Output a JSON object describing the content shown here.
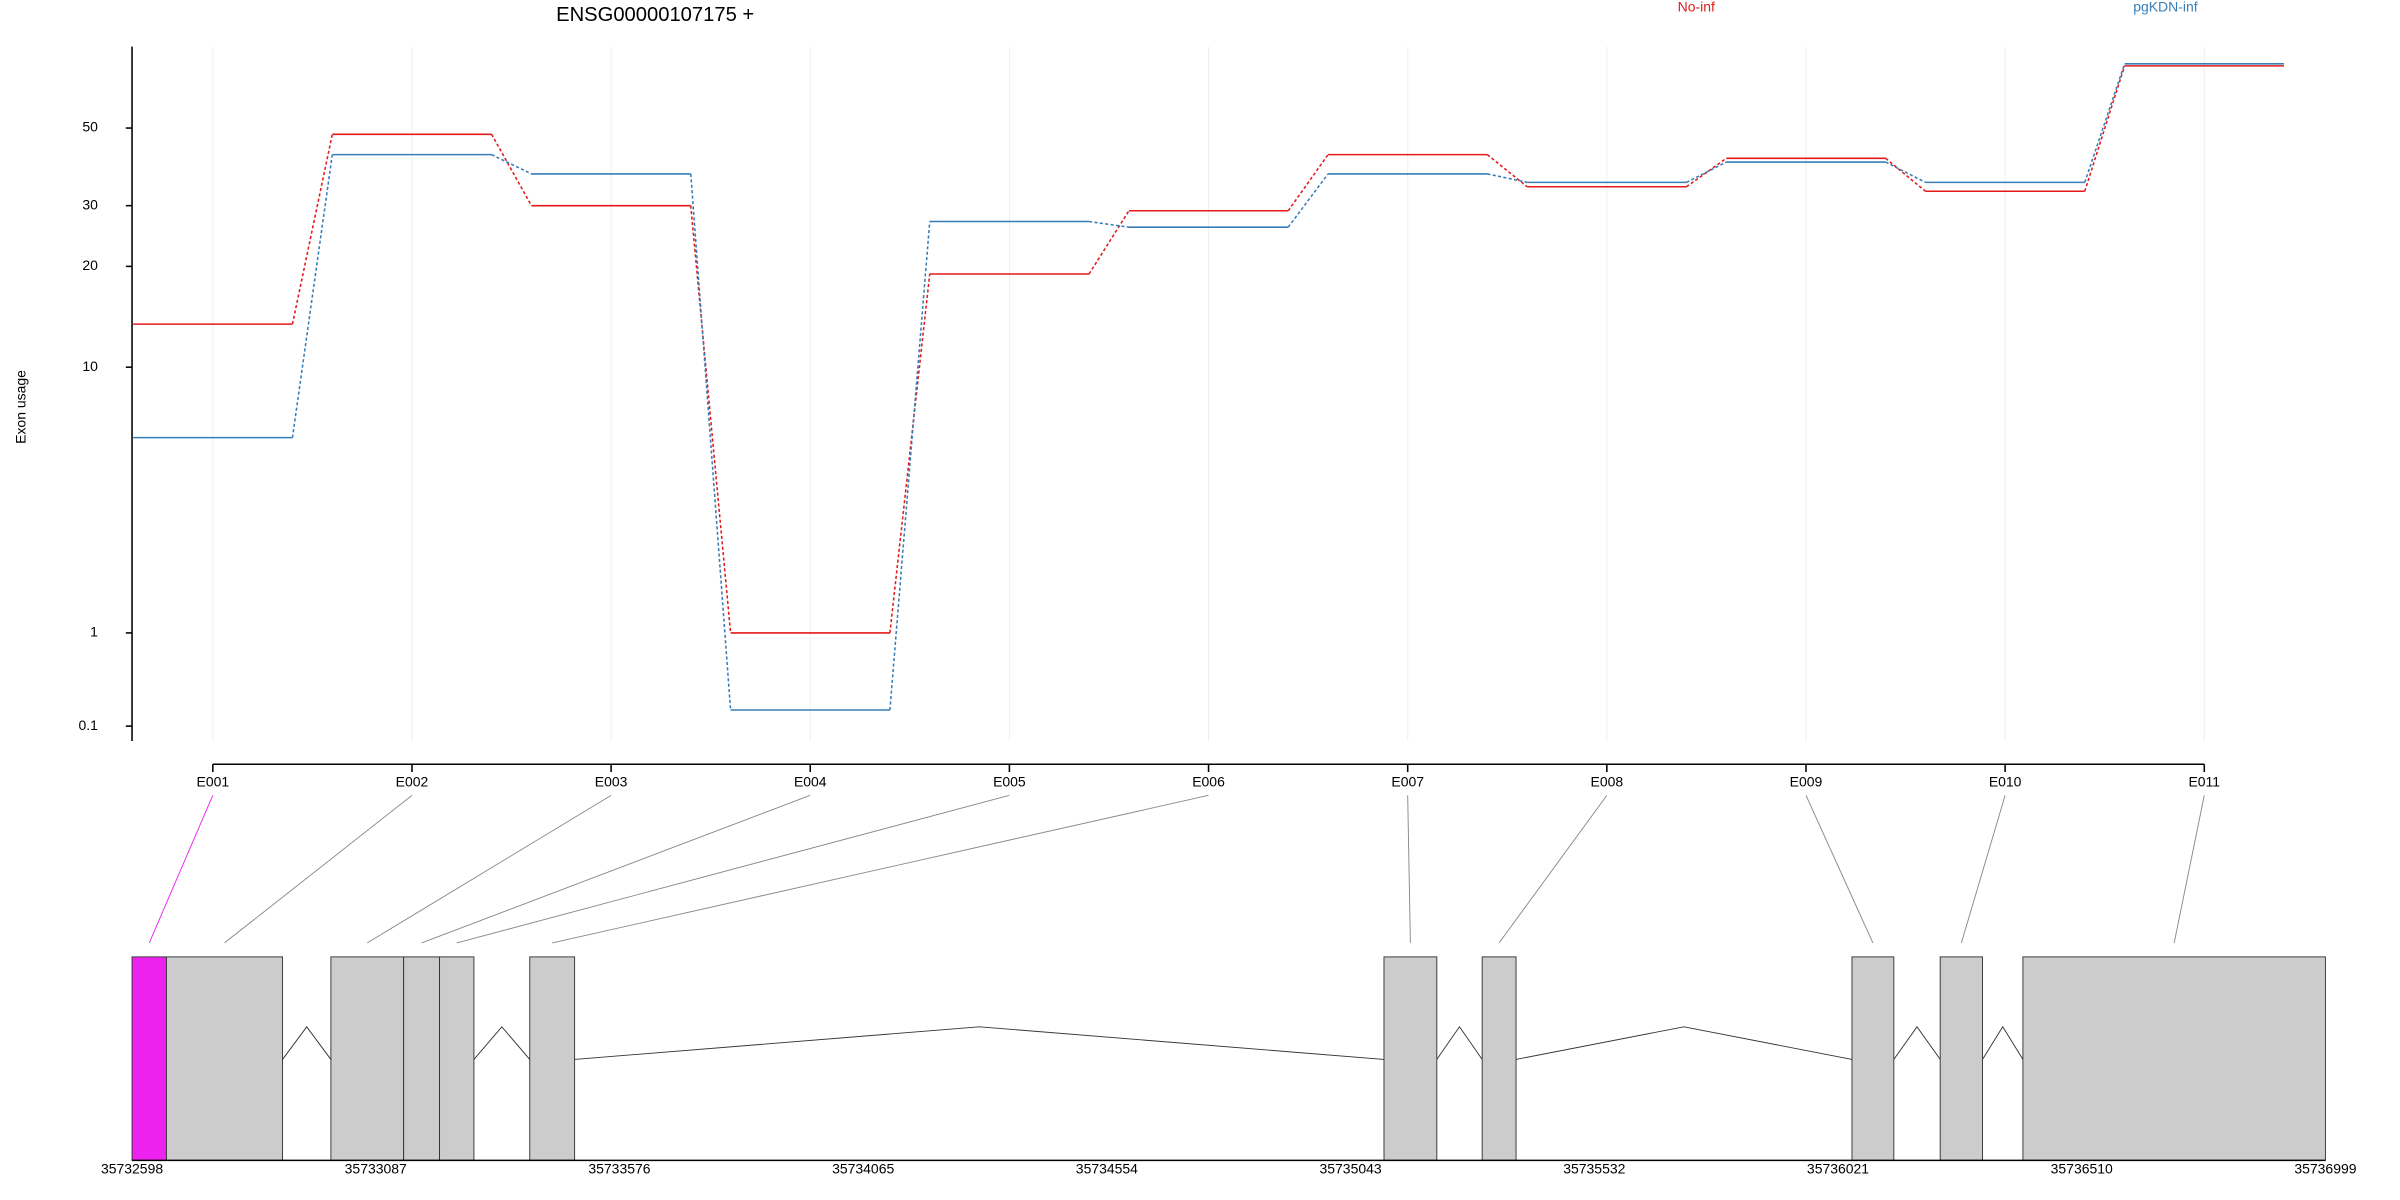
{
  "chart_data": {
    "type": "line",
    "title": "ENSG00000107175 +",
    "y_label": "Exon usage",
    "yscale": "log1p",
    "categories": [
      "E001",
      "E002",
      "E003",
      "E004",
      "E005",
      "E006",
      "E007",
      "E008",
      "E009",
      "E010",
      "E011"
    ],
    "series": [
      {
        "name": "No-inf",
        "color": "#e31a1c",
        "values": [
          13.5,
          48,
          30,
          1,
          19,
          29,
          42,
          34,
          41,
          33,
          75
        ]
      },
      {
        "name": "pgKDN-inf",
        "color": "#377eb8",
        "values": [
          6,
          42,
          37,
          0.22,
          27,
          26,
          37,
          35,
          40,
          35,
          76
        ]
      }
    ],
    "ylim": [
      0,
      85
    ],
    "yticks": [
      0.1,
      1,
      10,
      20,
      30,
      50
    ],
    "grid": true
  },
  "gene_model": {
    "xlim": [
      35732598,
      35736999
    ],
    "xticks": [
      35732598,
      35733087,
      35733576,
      35734065,
      35734554,
      35735043,
      35735532,
      35736021,
      35736510,
      35736999
    ],
    "exons": [
      {
        "start": 35732598,
        "end": 35732667,
        "color": "#ee22ee"
      },
      {
        "start": 35732667,
        "end": 35732900,
        "color": "#cccccc"
      },
      {
        "start": 35732997,
        "end": 35733143,
        "color": "#cccccc"
      },
      {
        "start": 35733143,
        "end": 35733215,
        "color": "#cccccc"
      },
      {
        "start": 35733215,
        "end": 35733284,
        "color": "#cccccc"
      },
      {
        "start": 35733396,
        "end": 35733486,
        "color": "#cccccc"
      },
      {
        "start": 35735110,
        "end": 35735216,
        "color": "#cccccc"
      },
      {
        "start": 35735307,
        "end": 35735375,
        "color": "#cccccc"
      },
      {
        "start": 35736049,
        "end": 35736133,
        "color": "#cccccc"
      },
      {
        "start": 35736226,
        "end": 35736311,
        "color": "#cccccc"
      },
      {
        "start": 35736392,
        "end": 35736999,
        "color": "#cccccc"
      }
    ]
  }
}
